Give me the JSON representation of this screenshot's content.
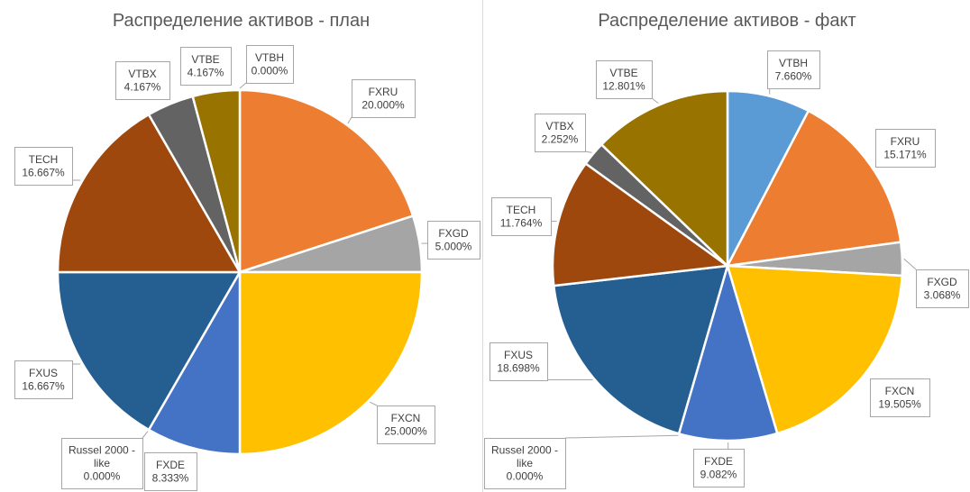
{
  "chart_data": [
    {
      "type": "pie",
      "title": "Распределение активов - план",
      "slices": [
        {
          "label": "VTBH",
          "value_text": "0.000%",
          "value": 0.0,
          "color": "#5B9BD5"
        },
        {
          "label": "FXRU",
          "value_text": "20.000%",
          "value": 20.0,
          "color": "#ED7D31"
        },
        {
          "label": "FXGD",
          "value_text": "5.000%",
          "value": 5.0,
          "color": "#A5A5A5"
        },
        {
          "label": "FXCN",
          "value_text": "25.000%",
          "value": 25.0,
          "color": "#FFC000"
        },
        {
          "label": "FXDE",
          "value_text": "8.333%",
          "value": 8.333,
          "color": "#4472C4"
        },
        {
          "label": "Russel 2000 - like",
          "value_text": "0.000%",
          "value": 0.0,
          "color": "#70AD47"
        },
        {
          "label": "FXUS",
          "value_text": "16.667%",
          "value": 16.667,
          "color": "#255E91"
        },
        {
          "label": "TECH",
          "value_text": "16.667%",
          "value": 16.667,
          "color": "#9E480E"
        },
        {
          "label": "VTBX",
          "value_text": "4.167%",
          "value": 4.167,
          "color": "#636363"
        },
        {
          "label": "VTBE",
          "value_text": "4.167%",
          "value": 4.167,
          "color": "#997300"
        }
      ]
    },
    {
      "type": "pie",
      "title": "Распределение активов - факт",
      "slices": [
        {
          "label": "VTBH",
          "value_text": "7.660%",
          "value": 7.66,
          "color": "#5B9BD5"
        },
        {
          "label": "FXRU",
          "value_text": "15.171%",
          "value": 15.171,
          "color": "#ED7D31"
        },
        {
          "label": "FXGD",
          "value_text": "3.068%",
          "value": 3.068,
          "color": "#A5A5A5"
        },
        {
          "label": "FXCN",
          "value_text": "19.505%",
          "value": 19.505,
          "color": "#FFC000"
        },
        {
          "label": "FXDE",
          "value_text": "9.082%",
          "value": 9.082,
          "color": "#4472C4"
        },
        {
          "label": "Russel 2000 - like",
          "value_text": "0.000%",
          "value": 0.0,
          "color": "#70AD47"
        },
        {
          "label": "FXUS",
          "value_text": "18.698%",
          "value": 18.698,
          "color": "#255E91"
        },
        {
          "label": "TECH",
          "value_text": "11.764%",
          "value": 11.764,
          "color": "#9E480E"
        },
        {
          "label": "VTBX",
          "value_text": "2.252%",
          "value": 2.252,
          "color": "#636363"
        },
        {
          "label": "VTBE",
          "value_text": "12.801%",
          "value": 12.801,
          "color": "#997300"
        }
      ]
    }
  ]
}
